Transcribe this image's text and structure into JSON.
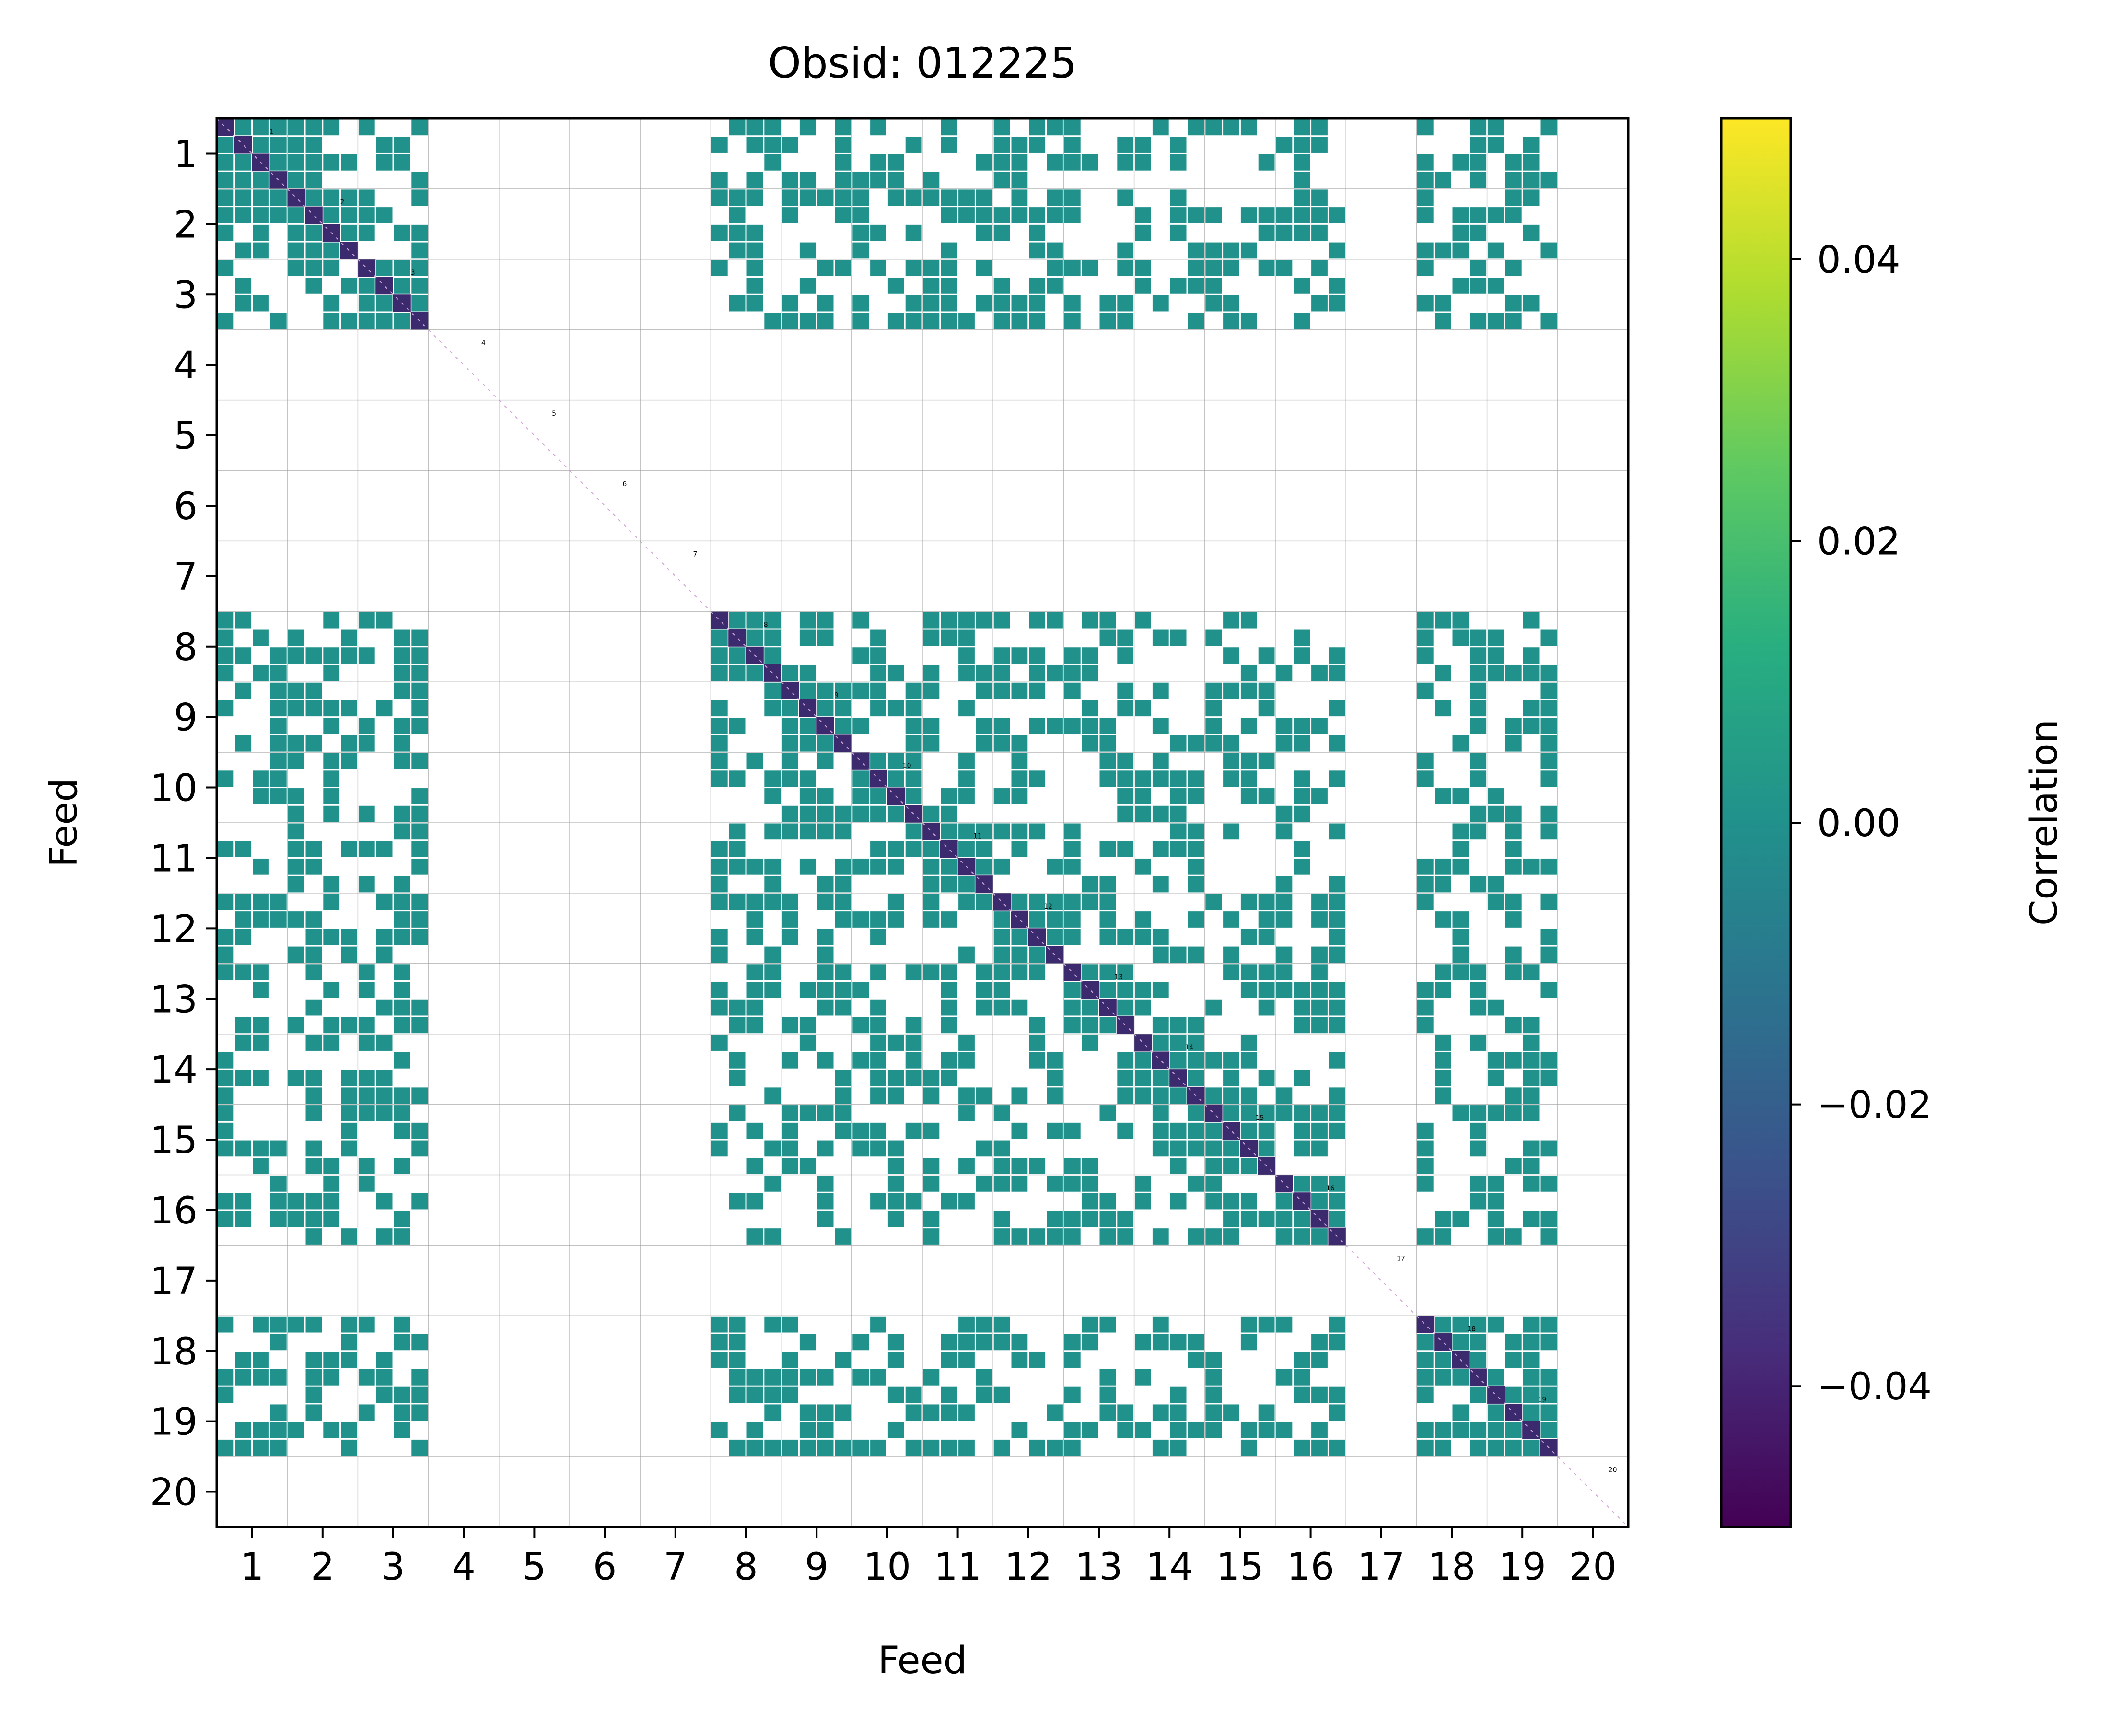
{
  "chart_data": {
    "type": "heatmap",
    "title": "Obsid: 012225",
    "xlabel": "Feed",
    "ylabel": "Feed",
    "feeds": [
      1,
      2,
      3,
      4,
      5,
      6,
      7,
      8,
      9,
      10,
      11,
      12,
      13,
      14,
      15,
      16,
      17,
      18,
      19,
      20
    ],
    "x_tick_labels": [
      "1",
      "2",
      "3",
      "4",
      "5",
      "6",
      "7",
      "8",
      "9",
      "10",
      "11",
      "12",
      "13",
      "14",
      "15",
      "16",
      "17",
      "18",
      "19",
      "20"
    ],
    "y_tick_labels": [
      "1",
      "2",
      "3",
      "4",
      "5",
      "6",
      "7",
      "8",
      "9",
      "10",
      "11",
      "12",
      "13",
      "14",
      "15",
      "16",
      "17",
      "18",
      "19",
      "20"
    ],
    "feed_labels": [
      "1",
      "2",
      "3",
      "4",
      "5",
      "6",
      "7",
      "8",
      "9",
      "10",
      "11",
      "12",
      "13",
      "14",
      "15",
      "16",
      "17",
      "18",
      "19",
      "20"
    ],
    "sub_bands_per_feed": 4,
    "active_feeds": [
      1,
      2,
      3,
      8,
      9,
      10,
      11,
      12,
      13,
      14,
      15,
      16,
      18,
      19
    ],
    "inactive_feeds": [
      4,
      5,
      6,
      7,
      17,
      20
    ],
    "correlation_value_off_diagonal": 0.0,
    "correlation_value_diagonal": -0.05,
    "grid": true,
    "colorbar": {
      "label": "Correlation",
      "colormap": "viridis",
      "range": [
        -0.05,
        0.05
      ],
      "ticks": [
        -0.04,
        -0.02,
        0.0,
        0.02,
        0.04
      ],
      "tick_labels": [
        "−0.04",
        "−0.02",
        "0.00",
        "0.02",
        "0.04"
      ]
    },
    "colors": {
      "cell": "#21918c",
      "diagonal": "#3b2a6e",
      "background": "#ffffff",
      "grid": "#999999"
    }
  }
}
